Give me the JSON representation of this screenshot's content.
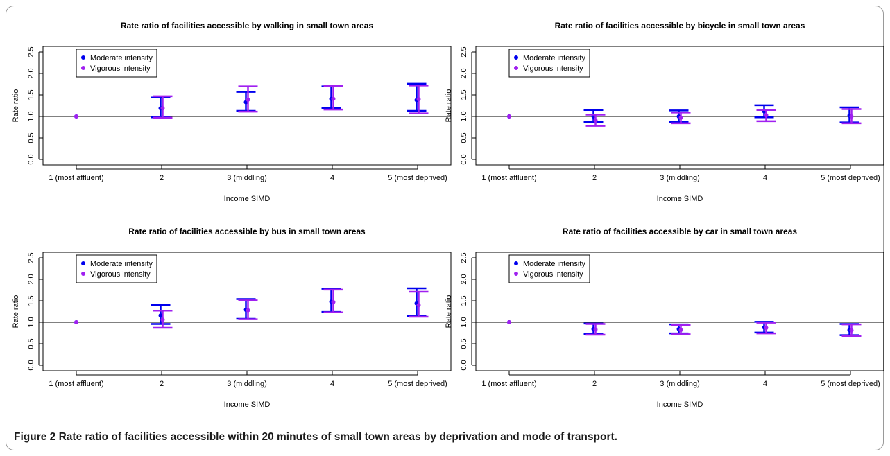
{
  "figure": {
    "label": "Figure 2",
    "caption": "Rate ratio of facilities accessible within 20 minutes of small town areas by deprivation and mode of transport."
  },
  "colors": {
    "moderate": "#0000ee",
    "vigorous": "#a020f0",
    "reference": "#000000"
  },
  "chart_data": [
    {
      "type": "errorbar",
      "title": "Rate ratio of facilities accessible by walking in small town areas",
      "xlabel": "Income SIMD",
      "ylabel": "Rate ratio",
      "ylim": [
        0,
        2.5
      ],
      "yticks": [
        "0.0",
        "0.5",
        "1.0",
        "1.5",
        "2.0",
        "2.5"
      ],
      "categories": [
        "1 (most affluent)",
        "2",
        "3 (middling)",
        "4",
        "5 (most deprived)"
      ],
      "reference_line": 1.0,
      "legend": {
        "position": "top-left",
        "entries": [
          "Moderate intensity",
          "Vigorous intensity"
        ]
      },
      "series": [
        {
          "name": "Moderate intensity",
          "estimate": [
            1.0,
            1.19,
            1.33,
            1.41,
            1.38
          ],
          "lower": [
            null,
            0.98,
            1.13,
            1.19,
            1.13
          ],
          "upper": [
            null,
            1.44,
            1.57,
            1.7,
            1.76
          ]
        },
        {
          "name": "Vigorous intensity",
          "estimate": [
            1.0,
            1.19,
            1.39,
            1.41,
            1.4
          ],
          "lower": [
            null,
            0.97,
            1.11,
            1.16,
            1.07
          ],
          "upper": [
            null,
            1.47,
            1.7,
            1.71,
            1.72
          ]
        }
      ]
    },
    {
      "type": "errorbar",
      "title": "Rate ratio of facilities accessible by bicycle in small town areas",
      "xlabel": "Income SIMD",
      "ylabel": "Rate ratio",
      "ylim": [
        0,
        2.5
      ],
      "yticks": [
        "0.0",
        "0.5",
        "1.0",
        "1.5",
        "2.0",
        "2.5"
      ],
      "categories": [
        "1 (most affluent)",
        "2",
        "3 (middling)",
        "4",
        "5 (most deprived)"
      ],
      "reference_line": 1.0,
      "legend": {
        "position": "top-left",
        "entries": [
          "Moderate intensity",
          "Vigorous intensity"
        ]
      },
      "series": [
        {
          "name": "Moderate intensity",
          "estimate": [
            1.0,
            1.0,
            1.0,
            1.12,
            1.02
          ],
          "lower": [
            null,
            0.87,
            0.87,
            0.98,
            0.86
          ],
          "upper": [
            null,
            1.15,
            1.14,
            1.26,
            1.21
          ]
        },
        {
          "name": "Vigorous intensity",
          "estimate": [
            1.0,
            0.91,
            0.97,
            1.03,
            1.0
          ],
          "lower": [
            null,
            0.78,
            0.84,
            0.89,
            0.84
          ],
          "upper": [
            null,
            1.04,
            1.09,
            1.15,
            1.17
          ]
        }
      ]
    },
    {
      "type": "errorbar",
      "title": "Rate ratio of facilities accessible by bus in small town areas",
      "xlabel": "Income SIMD",
      "ylabel": "Rate ratio",
      "ylim": [
        0,
        2.5
      ],
      "yticks": [
        "0.0",
        "0.5",
        "1.0",
        "1.5",
        "2.0",
        "2.5"
      ],
      "categories": [
        "1 (most affluent)",
        "2",
        "3 (middling)",
        "4",
        "5 (most deprived)"
      ],
      "reference_line": 1.0,
      "legend": {
        "position": "top-left",
        "entries": [
          "Moderate intensity",
          "Vigorous intensity"
        ]
      },
      "series": [
        {
          "name": "Moderate intensity",
          "estimate": [
            1.0,
            1.16,
            1.29,
            1.48,
            1.44
          ],
          "lower": [
            null,
            0.96,
            1.08,
            1.24,
            1.15
          ],
          "upper": [
            null,
            1.4,
            1.54,
            1.78,
            1.79
          ]
        },
        {
          "name": "Vigorous intensity",
          "estimate": [
            1.0,
            1.06,
            1.28,
            1.47,
            1.4
          ],
          "lower": [
            null,
            0.87,
            1.07,
            1.23,
            1.13
          ],
          "upper": [
            null,
            1.27,
            1.51,
            1.76,
            1.71
          ]
        }
      ]
    },
    {
      "type": "errorbar",
      "title": "Rate ratio of facilities accessible by car in small town areas",
      "xlabel": "Income SIMD",
      "ylabel": "Rate ratio",
      "ylim": [
        0,
        2.5
      ],
      "yticks": [
        "0.0",
        "0.5",
        "1.0",
        "1.5",
        "2.0",
        "2.5"
      ],
      "categories": [
        "1 (most affluent)",
        "2",
        "3 (middling)",
        "4",
        "5 (most deprived)"
      ],
      "reference_line": 1.0,
      "legend": {
        "position": "top-left",
        "entries": [
          "Moderate intensity",
          "Vigorous intensity"
        ]
      },
      "series": [
        {
          "name": "Moderate intensity",
          "estimate": [
            1.0,
            0.84,
            0.84,
            0.88,
            0.82
          ],
          "lower": [
            null,
            0.73,
            0.74,
            0.76,
            0.7
          ],
          "upper": [
            null,
            0.97,
            0.95,
            1.01,
            0.96
          ]
        },
        {
          "name": "Vigorous intensity",
          "estimate": [
            1.0,
            0.83,
            0.82,
            0.87,
            0.81
          ],
          "lower": [
            null,
            0.71,
            0.72,
            0.74,
            0.68
          ],
          "upper": [
            null,
            0.96,
            0.94,
            0.99,
            0.95
          ]
        }
      ]
    }
  ]
}
